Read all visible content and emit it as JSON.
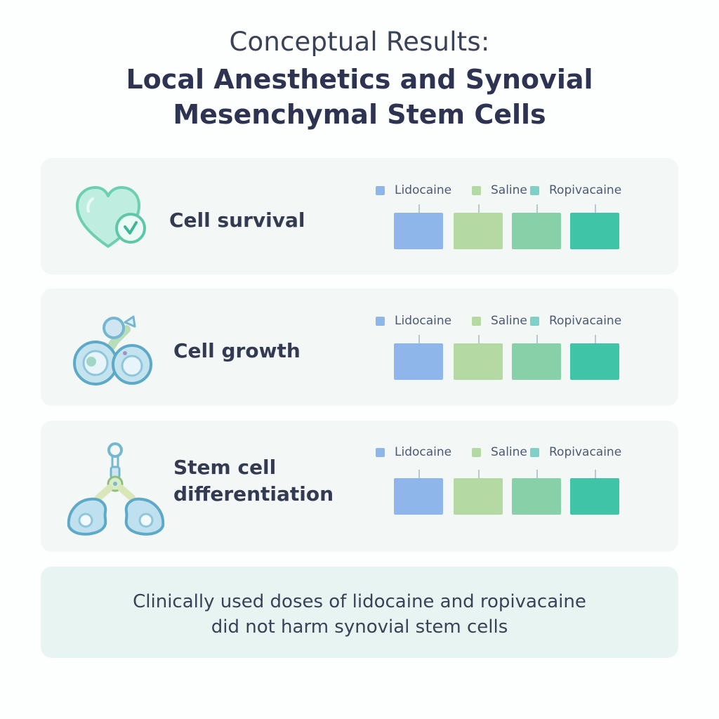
{
  "header": {
    "subtitle": "Conceptual Results:",
    "title_line1": "Local Anesthetics and Synovial",
    "title_line2": "Mesenchymal Stem Cells"
  },
  "rows": [
    {
      "label": "Cell survival",
      "icon": "heart-check-icon",
      "legend": [
        "Lidocaine",
        "Saline",
        "Ropivacaine"
      ]
    },
    {
      "label": "Cell growth",
      "icon": "dividing-cells-icon",
      "legend": [
        "Lidocaine",
        "Saline",
        "Ropivacaine"
      ]
    },
    {
      "label_line1": "Stem cell",
      "label_line2": "differentiation",
      "icon": "branching-cells-icon",
      "legend": [
        "Lidocaine",
        "Saline",
        "Ropivacaine"
      ]
    }
  ],
  "colors": {
    "lidocaine": "#8eb6ea",
    "saline": "#b5d9a3",
    "ropivacaine": "#7fd0c6",
    "bar_4": "#3fc4a8",
    "bar_3": "#88d0a8"
  },
  "summary": {
    "line1": "Clinically used doses of lidocaine and ropivacaine",
    "line2": "did not harm synovial stem cells"
  }
}
